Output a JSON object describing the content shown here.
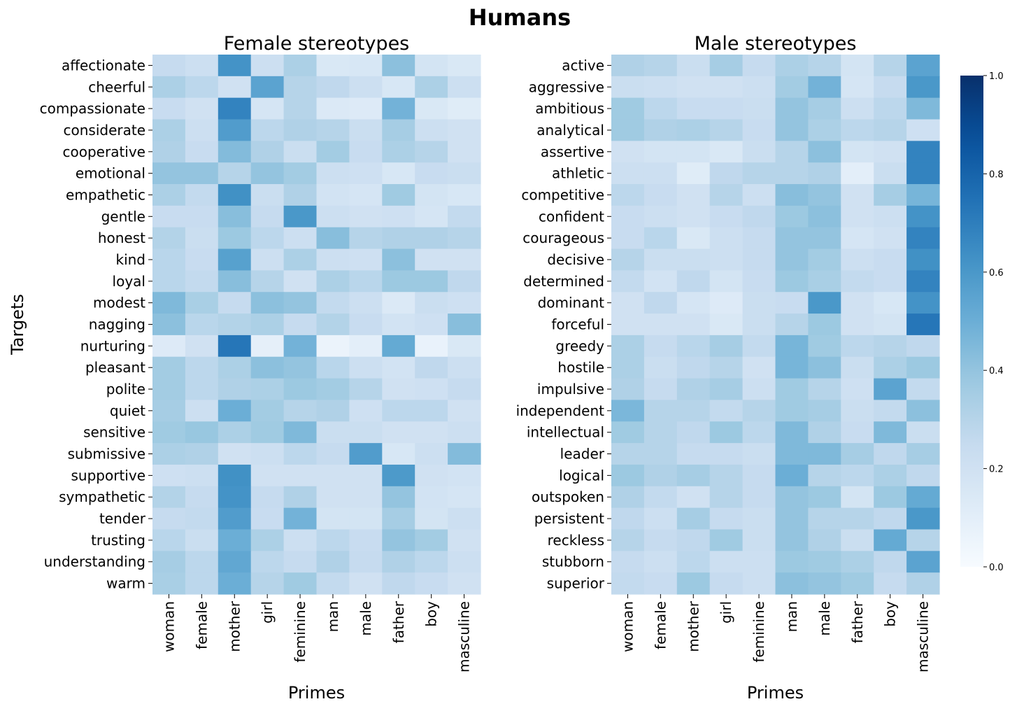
{
  "figure": {
    "title": "Humans"
  },
  "colorbar": {
    "min": 0.0,
    "max": 1.0,
    "ticks": [
      "0.0",
      "0.2",
      "0.4",
      "0.6",
      "0.8",
      "1.0"
    ]
  },
  "chart_data": [
    {
      "type": "heatmap",
      "title": "Female stereotypes",
      "xlabel": "Primes",
      "ylabel": "Targets",
      "x": [
        "woman",
        "female",
        "mother",
        "girl",
        "feminine",
        "man",
        "male",
        "father",
        "boy",
        "masculine"
      ],
      "y": [
        "affectionate",
        "cheerful",
        "compassionate",
        "considerate",
        "cooperative",
        "emotional",
        "empathetic",
        "gentle",
        "honest",
        "kind",
        "loyal",
        "modest",
        "nagging",
        "nurturing",
        "pleasant",
        "polite",
        "quiet",
        "sensitive",
        "submissive",
        "supportive",
        "sympathetic",
        "tender",
        "trusting",
        "understanding",
        "warm"
      ],
      "values": [
        [
          0.25,
          0.22,
          0.62,
          0.22,
          0.33,
          0.15,
          0.16,
          0.42,
          0.18,
          0.15
        ],
        [
          0.33,
          0.28,
          0.2,
          0.55,
          0.3,
          0.27,
          0.22,
          0.16,
          0.33,
          0.22
        ],
        [
          0.24,
          0.2,
          0.68,
          0.17,
          0.3,
          0.14,
          0.13,
          0.48,
          0.15,
          0.12
        ],
        [
          0.33,
          0.22,
          0.58,
          0.28,
          0.32,
          0.3,
          0.23,
          0.35,
          0.22,
          0.2
        ],
        [
          0.32,
          0.24,
          0.44,
          0.32,
          0.23,
          0.36,
          0.24,
          0.33,
          0.3,
          0.2
        ],
        [
          0.4,
          0.4,
          0.3,
          0.4,
          0.36,
          0.22,
          0.21,
          0.16,
          0.24,
          0.23
        ],
        [
          0.33,
          0.26,
          0.63,
          0.23,
          0.32,
          0.19,
          0.17,
          0.37,
          0.18,
          0.16
        ],
        [
          0.24,
          0.24,
          0.43,
          0.25,
          0.6,
          0.22,
          0.2,
          0.21,
          0.17,
          0.26
        ],
        [
          0.31,
          0.23,
          0.38,
          0.28,
          0.22,
          0.43,
          0.3,
          0.32,
          0.32,
          0.3
        ],
        [
          0.29,
          0.24,
          0.56,
          0.22,
          0.33,
          0.22,
          0.21,
          0.42,
          0.2,
          0.2
        ],
        [
          0.29,
          0.26,
          0.43,
          0.3,
          0.2,
          0.33,
          0.29,
          0.38,
          0.38,
          0.27
        ],
        [
          0.45,
          0.34,
          0.25,
          0.42,
          0.4,
          0.26,
          0.22,
          0.14,
          0.23,
          0.21
        ],
        [
          0.42,
          0.29,
          0.31,
          0.33,
          0.25,
          0.31,
          0.24,
          0.19,
          0.21,
          0.43
        ],
        [
          0.13,
          0.2,
          0.73,
          0.09,
          0.48,
          0.06,
          0.1,
          0.52,
          0.07,
          0.15
        ],
        [
          0.36,
          0.28,
          0.33,
          0.42,
          0.4,
          0.29,
          0.22,
          0.19,
          0.27,
          0.22
        ],
        [
          0.36,
          0.28,
          0.32,
          0.33,
          0.38,
          0.36,
          0.3,
          0.2,
          0.21,
          0.25
        ],
        [
          0.35,
          0.22,
          0.5,
          0.36,
          0.3,
          0.32,
          0.21,
          0.28,
          0.28,
          0.2
        ],
        [
          0.37,
          0.39,
          0.33,
          0.37,
          0.45,
          0.23,
          0.23,
          0.2,
          0.2,
          0.22
        ],
        [
          0.33,
          0.32,
          0.2,
          0.22,
          0.28,
          0.25,
          0.58,
          0.16,
          0.22,
          0.44
        ],
        [
          0.21,
          0.22,
          0.63,
          0.2,
          0.2,
          0.2,
          0.2,
          0.59,
          0.2,
          0.19
        ],
        [
          0.31,
          0.25,
          0.62,
          0.25,
          0.32,
          0.2,
          0.2,
          0.4,
          0.19,
          0.17
        ],
        [
          0.25,
          0.26,
          0.58,
          0.24,
          0.48,
          0.18,
          0.18,
          0.35,
          0.18,
          0.22
        ],
        [
          0.29,
          0.23,
          0.5,
          0.33,
          0.22,
          0.28,
          0.24,
          0.4,
          0.36,
          0.2
        ],
        [
          0.35,
          0.28,
          0.53,
          0.28,
          0.25,
          0.32,
          0.25,
          0.32,
          0.28,
          0.22
        ],
        [
          0.34,
          0.28,
          0.5,
          0.3,
          0.37,
          0.26,
          0.2,
          0.27,
          0.24,
          0.2
        ]
      ]
    },
    {
      "type": "heatmap",
      "title": "Male stereotypes",
      "xlabel": "Primes",
      "ylabel": "",
      "x": [
        "woman",
        "female",
        "mother",
        "girl",
        "feminine",
        "man",
        "male",
        "father",
        "boy",
        "masculine"
      ],
      "y": [
        "active",
        "aggressive",
        "ambitious",
        "analytical",
        "assertive",
        "athletic",
        "competitive",
        "confident",
        "courageous",
        "decisive",
        "determined",
        "dominant",
        "forceful",
        "greedy",
        "hostile",
        "impulsive",
        "independent",
        "intellectual",
        "leader",
        "logical",
        "outspoken",
        "persistent",
        "reckless",
        "stubborn",
        "superior"
      ],
      "values": [
        [
          0.32,
          0.3,
          0.23,
          0.35,
          0.25,
          0.33,
          0.3,
          0.18,
          0.3,
          0.55
        ],
        [
          0.23,
          0.22,
          0.2,
          0.2,
          0.22,
          0.36,
          0.48,
          0.17,
          0.25,
          0.6
        ],
        [
          0.37,
          0.28,
          0.24,
          0.24,
          0.23,
          0.4,
          0.35,
          0.22,
          0.28,
          0.45
        ],
        [
          0.37,
          0.32,
          0.33,
          0.3,
          0.24,
          0.4,
          0.33,
          0.28,
          0.3,
          0.21
        ],
        [
          0.2,
          0.18,
          0.18,
          0.15,
          0.23,
          0.3,
          0.42,
          0.18,
          0.2,
          0.68
        ],
        [
          0.22,
          0.22,
          0.12,
          0.27,
          0.3,
          0.3,
          0.32,
          0.1,
          0.23,
          0.68
        ],
        [
          0.28,
          0.24,
          0.2,
          0.3,
          0.22,
          0.43,
          0.4,
          0.2,
          0.35,
          0.47
        ],
        [
          0.24,
          0.22,
          0.2,
          0.24,
          0.27,
          0.38,
          0.42,
          0.2,
          0.22,
          0.62
        ],
        [
          0.24,
          0.29,
          0.15,
          0.22,
          0.25,
          0.4,
          0.4,
          0.17,
          0.2,
          0.68
        ],
        [
          0.3,
          0.23,
          0.23,
          0.22,
          0.25,
          0.4,
          0.36,
          0.22,
          0.24,
          0.63
        ],
        [
          0.26,
          0.19,
          0.27,
          0.18,
          0.24,
          0.38,
          0.34,
          0.26,
          0.24,
          0.68
        ],
        [
          0.2,
          0.27,
          0.17,
          0.13,
          0.23,
          0.24,
          0.6,
          0.2,
          0.16,
          0.62
        ],
        [
          0.2,
          0.2,
          0.2,
          0.15,
          0.23,
          0.3,
          0.38,
          0.2,
          0.18,
          0.73
        ],
        [
          0.33,
          0.25,
          0.29,
          0.35,
          0.26,
          0.47,
          0.37,
          0.28,
          0.3,
          0.27
        ],
        [
          0.33,
          0.23,
          0.27,
          0.3,
          0.2,
          0.47,
          0.42,
          0.23,
          0.33,
          0.38
        ],
        [
          0.32,
          0.25,
          0.32,
          0.35,
          0.22,
          0.37,
          0.3,
          0.21,
          0.55,
          0.26
        ],
        [
          0.46,
          0.3,
          0.3,
          0.26,
          0.3,
          0.37,
          0.35,
          0.23,
          0.26,
          0.42
        ],
        [
          0.37,
          0.3,
          0.27,
          0.38,
          0.28,
          0.45,
          0.32,
          0.24,
          0.45,
          0.23
        ],
        [
          0.3,
          0.3,
          0.25,
          0.25,
          0.23,
          0.45,
          0.45,
          0.35,
          0.27,
          0.35
        ],
        [
          0.38,
          0.32,
          0.35,
          0.3,
          0.25,
          0.5,
          0.3,
          0.28,
          0.33,
          0.27
        ],
        [
          0.32,
          0.26,
          0.2,
          0.3,
          0.25,
          0.4,
          0.38,
          0.18,
          0.38,
          0.52
        ],
        [
          0.27,
          0.22,
          0.35,
          0.25,
          0.23,
          0.4,
          0.3,
          0.3,
          0.27,
          0.6
        ],
        [
          0.3,
          0.25,
          0.27,
          0.37,
          0.23,
          0.4,
          0.32,
          0.23,
          0.52,
          0.3
        ],
        [
          0.25,
          0.22,
          0.28,
          0.22,
          0.22,
          0.38,
          0.37,
          0.33,
          0.27,
          0.55
        ],
        [
          0.26,
          0.24,
          0.38,
          0.25,
          0.22,
          0.42,
          0.4,
          0.37,
          0.25,
          0.32
        ]
      ]
    }
  ]
}
